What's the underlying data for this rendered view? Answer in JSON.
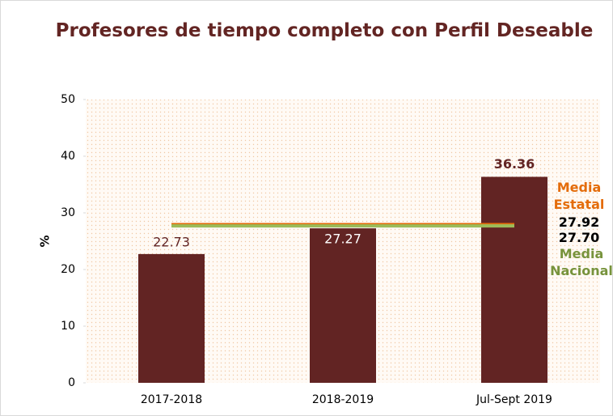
{
  "chart_data": {
    "type": "bar",
    "title": "Profesores de tiempo completo con Perfil Deseable",
    "y_label": "%",
    "categories": [
      "2017-2018",
      "2018-2019",
      "Jul-Sept 2019"
    ],
    "values": [
      22.73,
      27.27,
      36.36
    ],
    "color": "#622423",
    "ylim": [
      0,
      50
    ],
    "yticks": [
      0,
      10,
      20,
      30,
      40,
      50
    ],
    "reference_lines": [
      {
        "name": "Media Estatal",
        "value": 27.92,
        "value_label": "27.92",
        "color": "#e46c0a"
      },
      {
        "name": "Media Nacional",
        "value": 27.7,
        "value_label": "27.70",
        "color": "#9bbb59"
      }
    ]
  }
}
